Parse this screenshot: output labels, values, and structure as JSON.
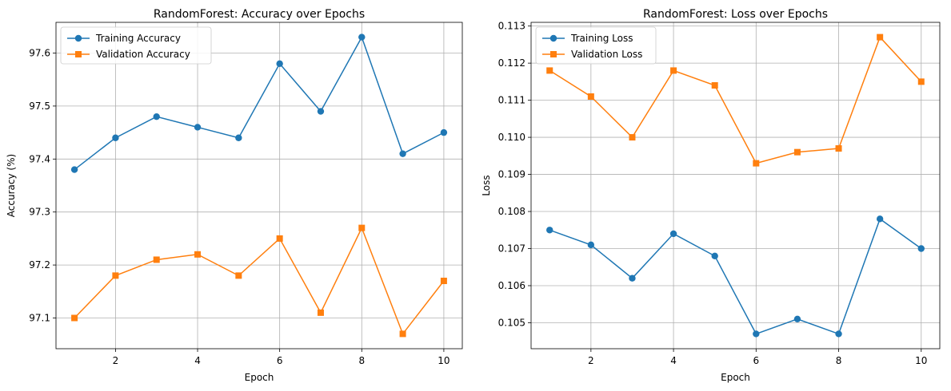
{
  "chart_data": [
    {
      "type": "line",
      "title": "RandomForest: Accuracy over Epochs",
      "xlabel": "Epoch",
      "ylabel": "Accuracy (%)",
      "x": [
        1,
        2,
        3,
        4,
        5,
        6,
        7,
        8,
        9,
        10
      ],
      "xlim": [
        0.55,
        10.45
      ],
      "ylim": [
        97.042,
        97.658
      ],
      "xticks": [
        2,
        4,
        6,
        8,
        10
      ],
      "xtick_labels": [
        "2",
        "4",
        "6",
        "8",
        "10"
      ],
      "yticks": [
        97.1,
        97.2,
        97.3,
        97.4,
        97.5,
        97.6
      ],
      "ytick_labels": [
        "97.1",
        "97.2",
        "97.3",
        "97.4",
        "97.5",
        "97.6"
      ],
      "grid": true,
      "legend_position": "upper-left",
      "series": [
        {
          "name": "Training Accuracy",
          "color": "#1f77b4",
          "marker": "circle",
          "values": [
            97.38,
            97.44,
            97.48,
            97.46,
            97.44,
            97.58,
            97.49,
            97.63,
            97.41,
            97.45
          ]
        },
        {
          "name": "Validation Accuracy",
          "color": "#ff7f0e",
          "marker": "square",
          "values": [
            97.1,
            97.18,
            97.21,
            97.22,
            97.18,
            97.25,
            97.11,
            97.27,
            97.07,
            97.17
          ]
        }
      ]
    },
    {
      "type": "line",
      "title": "RandomForest: Loss over Epochs",
      "xlabel": "Epoch",
      "ylabel": "Loss",
      "x": [
        1,
        2,
        3,
        4,
        5,
        6,
        7,
        8,
        9,
        10
      ],
      "xlim": [
        0.55,
        10.45
      ],
      "ylim": [
        0.1043,
        0.1131
      ],
      "xticks": [
        2,
        4,
        6,
        8,
        10
      ],
      "xtick_labels": [
        "2",
        "4",
        "6",
        "8",
        "10"
      ],
      "yticks": [
        0.105,
        0.106,
        0.107,
        0.108,
        0.109,
        0.11,
        0.111,
        0.112,
        0.113
      ],
      "ytick_labels": [
        "0.105",
        "0.106",
        "0.107",
        "0.108",
        "0.109",
        "0.110",
        "0.111",
        "0.112",
        "0.113"
      ],
      "grid": true,
      "legend_position": "upper-left",
      "series": [
        {
          "name": "Training Loss",
          "color": "#1f77b4",
          "marker": "circle",
          "values": [
            0.1075,
            0.1071,
            0.1062,
            0.1074,
            0.1068,
            0.1047,
            0.1051,
            0.1047,
            0.1078,
            0.107
          ]
        },
        {
          "name": "Validation Loss",
          "color": "#ff7f0e",
          "marker": "square",
          "values": [
            0.1118,
            0.1111,
            0.11,
            0.1118,
            0.1114,
            0.1093,
            0.1096,
            0.1097,
            0.1127,
            0.1115
          ]
        }
      ]
    }
  ]
}
